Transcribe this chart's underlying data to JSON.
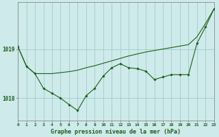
{
  "background_color": "#ceeaea",
  "grid_color": "#a0cccc",
  "line_color": "#1a5e1a",
  "marker_color": "#1a5e1a",
  "title": "Graphe pression niveau de la mer (hPa)",
  "xlim": [
    0,
    23
  ],
  "ylim": [
    1017.55,
    1019.95
  ],
  "yticks": [
    1018,
    1019
  ],
  "ytick_labels": [
    "1018",
    "1019"
  ],
  "xticks": [
    0,
    1,
    2,
    3,
    4,
    5,
    6,
    7,
    8,
    9,
    10,
    11,
    12,
    13,
    14,
    15,
    16,
    17,
    18,
    19,
    20,
    21,
    22,
    23
  ],
  "series1_x": [
    0,
    1,
    2,
    3,
    4,
    5,
    6,
    7,
    8,
    9,
    10,
    11,
    12,
    13,
    14,
    15,
    16,
    17,
    18,
    19,
    20,
    21,
    22,
    23
  ],
  "series1_y": [
    1019.05,
    1018.65,
    1018.5,
    1018.5,
    1018.5,
    1018.52,
    1018.54,
    1018.57,
    1018.62,
    1018.66,
    1018.71,
    1018.76,
    1018.81,
    1018.86,
    1018.9,
    1018.94,
    1018.97,
    1019.0,
    1019.03,
    1019.06,
    1019.09,
    1019.25,
    1019.52,
    1019.82
  ],
  "series2_x": [
    0,
    1,
    2,
    3,
    4,
    5,
    6,
    7,
    8,
    9,
    10,
    11,
    12,
    13,
    14,
    15,
    16,
    17,
    18,
    19,
    20,
    21,
    22,
    23
  ],
  "series2_y": [
    1019.05,
    1018.65,
    1018.5,
    1018.2,
    1018.1,
    1018.0,
    1017.87,
    1017.75,
    1018.05,
    1018.2,
    1018.45,
    1018.62,
    1018.7,
    1018.62,
    1018.6,
    1018.55,
    1018.38,
    1018.43,
    1018.48,
    1018.48,
    1018.48,
    1019.12,
    1019.45,
    1019.82
  ]
}
